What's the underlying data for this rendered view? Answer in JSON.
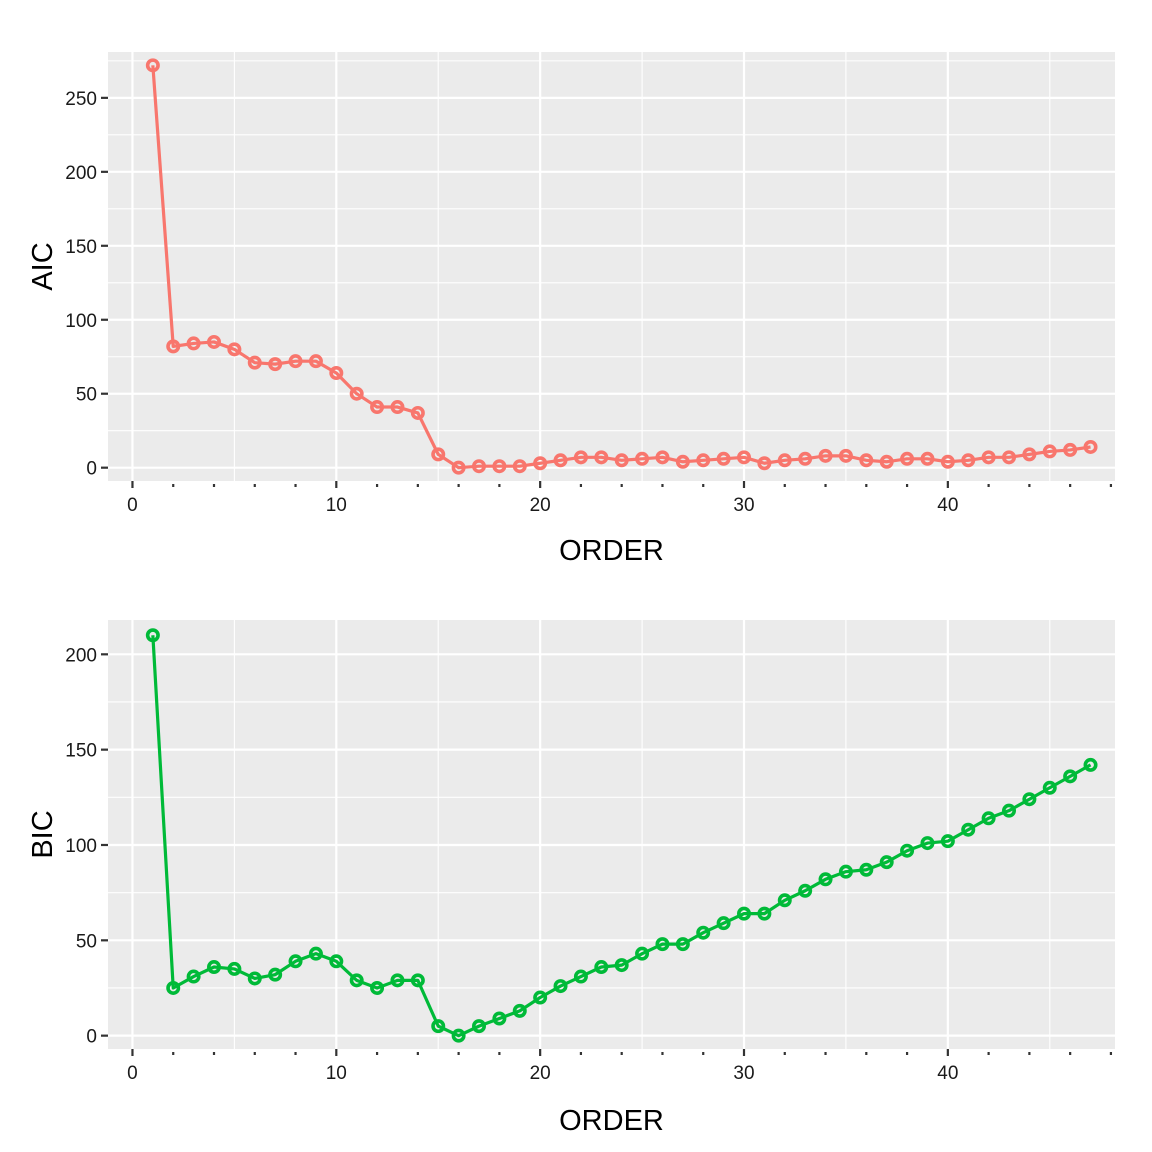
{
  "chart_data": [
    {
      "type": "line",
      "xlabel": "ORDER",
      "ylabel": "AIC",
      "xlim": [
        -1.2,
        48.2
      ],
      "ylim": [
        -9,
        281
      ],
      "xticks": [
        0,
        10,
        20,
        30,
        40
      ],
      "yticks": [
        0,
        50,
        100,
        150,
        200,
        250
      ],
      "grid": true,
      "series": [
        {
          "color": "#F8766D",
          "x": [
            1,
            2,
            3,
            4,
            5,
            6,
            7,
            8,
            9,
            10,
            11,
            12,
            13,
            14,
            15,
            16,
            17,
            18,
            19,
            20,
            21,
            22,
            23,
            24,
            25,
            26,
            27,
            28,
            29,
            30,
            31,
            32,
            33,
            34,
            35,
            36,
            37,
            38,
            39,
            40,
            41,
            42,
            43,
            44,
            45,
            46,
            47
          ],
          "y": [
            272,
            82,
            84,
            85,
            80,
            71,
            70,
            72,
            72,
            64,
            50,
            41,
            41,
            37,
            9,
            0,
            1,
            1,
            1,
            3,
            5,
            7,
            7,
            5,
            6,
            7,
            4,
            5,
            6,
            7,
            3,
            5,
            6,
            8,
            8,
            5,
            4,
            6,
            6,
            4,
            5,
            7,
            7,
            9,
            11,
            12,
            14
          ]
        }
      ]
    },
    {
      "type": "line",
      "xlabel": "ORDER",
      "ylabel": "BIC",
      "xlim": [
        -1.2,
        48.2
      ],
      "ylim": [
        -7,
        218
      ],
      "xticks": [
        0,
        10,
        20,
        30,
        40
      ],
      "yticks": [
        0,
        50,
        100,
        150,
        200
      ],
      "grid": true,
      "series": [
        {
          "color": "#00BA38",
          "x": [
            1,
            2,
            3,
            4,
            5,
            6,
            7,
            8,
            9,
            10,
            11,
            12,
            13,
            14,
            15,
            16,
            17,
            18,
            19,
            20,
            21,
            22,
            23,
            24,
            25,
            26,
            27,
            28,
            29,
            30,
            31,
            32,
            33,
            34,
            35,
            36,
            37,
            38,
            39,
            40,
            41,
            42,
            43,
            44,
            45,
            46,
            47
          ],
          "y": [
            210,
            25,
            31,
            36,
            35,
            30,
            32,
            39,
            43,
            39,
            29,
            25,
            29,
            29,
            5,
            0,
            5,
            9,
            13,
            20,
            26,
            31,
            36,
            37,
            43,
            48,
            48,
            54,
            59,
            64,
            64,
            71,
            76,
            82,
            86,
            87,
            91,
            97,
            101,
            102,
            108,
            114,
            118,
            124,
            130,
            136,
            142
          ]
        }
      ]
    }
  ]
}
